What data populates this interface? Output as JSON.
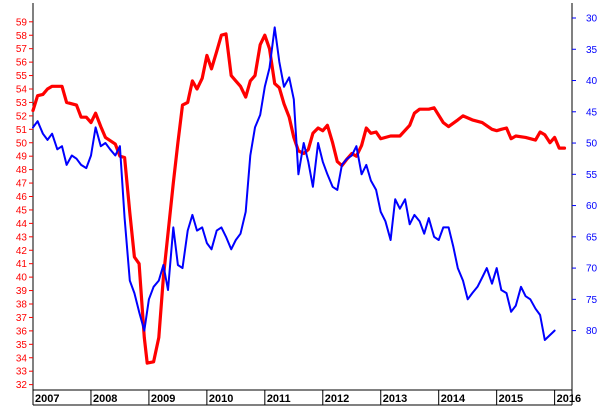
{
  "chart_data": {
    "type": "line",
    "title": "",
    "xlabel": "",
    "ylabel_left": "",
    "ylabel_right": "",
    "x_ticks": [
      "2007",
      "2008",
      "2009",
      "2010",
      "2011",
      "2012",
      "2013",
      "2014",
      "2015",
      "2016"
    ],
    "x_range": [
      2007.0,
      2016.3
    ],
    "y_left": {
      "range": [
        31.6,
        60.4
      ],
      "ticks": [
        32,
        33,
        34,
        35,
        36,
        37,
        38,
        39,
        40,
        41,
        42,
        43,
        44,
        45,
        46,
        47,
        48,
        49,
        50,
        51,
        52,
        53,
        54,
        55,
        56,
        57,
        58,
        59
      ],
      "color": "#ff0000"
    },
    "y_right": {
      "range": [
        27.6,
        89.5
      ],
      "ticks": [
        30,
        35,
        40,
        45,
        50,
        55,
        60,
        65,
        70,
        75,
        80
      ],
      "inverted": true,
      "color": "#0000ff"
    },
    "grid": false,
    "legend": "none",
    "series": [
      {
        "axis": "left",
        "color": "#ff0000",
        "points": [
          [
            2007.0,
            52.4
          ],
          [
            2007.08,
            53.5
          ],
          [
            2007.17,
            53.6
          ],
          [
            2007.25,
            54.0
          ],
          [
            2007.33,
            54.2
          ],
          [
            2007.5,
            54.2
          ],
          [
            2007.58,
            53.0
          ],
          [
            2007.75,
            52.8
          ],
          [
            2007.83,
            51.9
          ],
          [
            2007.92,
            51.9
          ],
          [
            2008.0,
            51.5
          ],
          [
            2008.08,
            52.2
          ],
          [
            2008.17,
            51.2
          ],
          [
            2008.25,
            50.4
          ],
          [
            2008.42,
            49.9
          ],
          [
            2008.5,
            49.0
          ],
          [
            2008.58,
            48.9
          ],
          [
            2008.67,
            44.8
          ],
          [
            2008.75,
            41.5
          ],
          [
            2008.83,
            41.0
          ],
          [
            2008.92,
            35.5
          ],
          [
            2008.97,
            33.6
          ],
          [
            2009.08,
            33.7
          ],
          [
            2009.17,
            35.5
          ],
          [
            2009.25,
            40.0
          ],
          [
            2009.42,
            47.0
          ],
          [
            2009.5,
            50.0
          ],
          [
            2009.58,
            52.8
          ],
          [
            2009.67,
            53.0
          ],
          [
            2009.75,
            54.6
          ],
          [
            2009.83,
            54.0
          ],
          [
            2009.92,
            54.8
          ],
          [
            2010.0,
            56.5
          ],
          [
            2010.08,
            55.5
          ],
          [
            2010.17,
            56.8
          ],
          [
            2010.25,
            58.0
          ],
          [
            2010.33,
            58.1
          ],
          [
            2010.42,
            55.0
          ],
          [
            2010.5,
            54.6
          ],
          [
            2010.58,
            54.2
          ],
          [
            2010.67,
            53.4
          ],
          [
            2010.75,
            54.6
          ],
          [
            2010.83,
            55.0
          ],
          [
            2010.92,
            57.3
          ],
          [
            2011.0,
            58.0
          ],
          [
            2011.08,
            57.0
          ],
          [
            2011.17,
            54.4
          ],
          [
            2011.25,
            54.1
          ],
          [
            2011.33,
            52.9
          ],
          [
            2011.42,
            51.9
          ],
          [
            2011.5,
            50.4
          ],
          [
            2011.58,
            49.4
          ],
          [
            2011.67,
            49.2
          ],
          [
            2011.75,
            49.5
          ],
          [
            2011.83,
            50.7
          ],
          [
            2011.92,
            51.1
          ],
          [
            2012.0,
            50.9
          ],
          [
            2012.08,
            51.3
          ],
          [
            2012.17,
            50.0
          ],
          [
            2012.25,
            48.6
          ],
          [
            2012.33,
            48.3
          ],
          [
            2012.42,
            48.8
          ],
          [
            2012.5,
            49.2
          ],
          [
            2012.58,
            49.0
          ],
          [
            2012.67,
            49.8
          ],
          [
            2012.75,
            51.1
          ],
          [
            2012.83,
            50.7
          ],
          [
            2012.92,
            50.8
          ],
          [
            2013.0,
            50.3
          ],
          [
            2013.17,
            50.5
          ],
          [
            2013.33,
            50.5
          ],
          [
            2013.5,
            51.3
          ],
          [
            2013.58,
            52.2
          ],
          [
            2013.67,
            52.5
          ],
          [
            2013.83,
            52.5
          ],
          [
            2013.92,
            52.6
          ],
          [
            2014.08,
            51.5
          ],
          [
            2014.17,
            51.2
          ],
          [
            2014.33,
            51.7
          ],
          [
            2014.42,
            52.0
          ],
          [
            2014.58,
            51.7
          ],
          [
            2014.75,
            51.5
          ],
          [
            2014.92,
            51.0
          ],
          [
            2015.0,
            50.9
          ],
          [
            2015.08,
            51.0
          ],
          [
            2015.17,
            51.1
          ],
          [
            2015.25,
            50.3
          ],
          [
            2015.33,
            50.5
          ],
          [
            2015.5,
            50.4
          ],
          [
            2015.67,
            50.2
          ],
          [
            2015.75,
            50.8
          ],
          [
            2015.83,
            50.6
          ],
          [
            2015.92,
            50.0
          ],
          [
            2016.0,
            50.4
          ],
          [
            2016.08,
            49.6
          ],
          [
            2016.17,
            49.6
          ]
        ]
      },
      {
        "axis": "right",
        "color": "#0000ff",
        "points": [
          [
            2007.0,
            47.5
          ],
          [
            2007.08,
            46.5
          ],
          [
            2007.17,
            48.5
          ],
          [
            2007.25,
            49.5
          ],
          [
            2007.33,
            48.5
          ],
          [
            2007.42,
            51.0
          ],
          [
            2007.5,
            50.5
          ],
          [
            2007.58,
            53.5
          ],
          [
            2007.67,
            52.0
          ],
          [
            2007.75,
            52.5
          ],
          [
            2007.83,
            53.5
          ],
          [
            2007.92,
            54.0
          ],
          [
            2008.0,
            52.0
          ],
          [
            2008.08,
            47.5
          ],
          [
            2008.17,
            50.5
          ],
          [
            2008.25,
            50.0
          ],
          [
            2008.33,
            51.0
          ],
          [
            2008.42,
            52.0
          ],
          [
            2008.5,
            50.5
          ],
          [
            2008.58,
            62.0
          ],
          [
            2008.67,
            72.0
          ],
          [
            2008.75,
            74.0
          ],
          [
            2008.83,
            77.0
          ],
          [
            2008.92,
            80.0
          ],
          [
            2009.0,
            75.0
          ],
          [
            2009.08,
            73.0
          ],
          [
            2009.17,
            72.0
          ],
          [
            2009.25,
            69.5
          ],
          [
            2009.33,
            73.5
          ],
          [
            2009.42,
            63.5
          ],
          [
            2009.5,
            69.5
          ],
          [
            2009.58,
            70.0
          ],
          [
            2009.67,
            64.0
          ],
          [
            2009.75,
            61.5
          ],
          [
            2009.83,
            64.0
          ],
          [
            2009.92,
            63.5
          ],
          [
            2010.0,
            66.0
          ],
          [
            2010.08,
            67.0
          ],
          [
            2010.17,
            64.0
          ],
          [
            2010.25,
            63.5
          ],
          [
            2010.33,
            65.0
          ],
          [
            2010.42,
            67.0
          ],
          [
            2010.5,
            65.5
          ],
          [
            2010.58,
            64.5
          ],
          [
            2010.67,
            61.0
          ],
          [
            2010.75,
            52.0
          ],
          [
            2010.83,
            47.5
          ],
          [
            2010.92,
            45.5
          ],
          [
            2011.0,
            41.0
          ],
          [
            2011.08,
            38.0
          ],
          [
            2011.17,
            31.5
          ],
          [
            2011.25,
            37.0
          ],
          [
            2011.33,
            41.0
          ],
          [
            2011.42,
            39.5
          ],
          [
            2011.5,
            43.0
          ],
          [
            2011.58,
            55.0
          ],
          [
            2011.67,
            50.0
          ],
          [
            2011.75,
            53.0
          ],
          [
            2011.83,
            57.0
          ],
          [
            2011.92,
            50.0
          ],
          [
            2012.0,
            53.0
          ],
          [
            2012.08,
            55.0
          ],
          [
            2012.17,
            57.0
          ],
          [
            2012.25,
            57.5
          ],
          [
            2012.33,
            53.5
          ],
          [
            2012.42,
            52.5
          ],
          [
            2012.5,
            52.0
          ],
          [
            2012.58,
            50.5
          ],
          [
            2012.67,
            55.0
          ],
          [
            2012.75,
            53.5
          ],
          [
            2012.83,
            56.0
          ],
          [
            2012.92,
            57.5
          ],
          [
            2013.0,
            61.0
          ],
          [
            2013.08,
            62.5
          ],
          [
            2013.17,
            65.5
          ],
          [
            2013.25,
            59.0
          ],
          [
            2013.33,
            60.5
          ],
          [
            2013.42,
            59.0
          ],
          [
            2013.5,
            63.0
          ],
          [
            2013.58,
            61.5
          ],
          [
            2013.67,
            62.5
          ],
          [
            2013.75,
            64.5
          ],
          [
            2013.83,
            62.0
          ],
          [
            2013.92,
            65.0
          ],
          [
            2014.0,
            65.5
          ],
          [
            2014.08,
            63.5
          ],
          [
            2014.17,
            63.5
          ],
          [
            2014.25,
            66.5
          ],
          [
            2014.33,
            70.0
          ],
          [
            2014.42,
            72.0
          ],
          [
            2014.5,
            75.0
          ],
          [
            2014.58,
            74.0
          ],
          [
            2014.67,
            73.0
          ],
          [
            2014.75,
            71.5
          ],
          [
            2014.83,
            70.0
          ],
          [
            2014.92,
            72.5
          ],
          [
            2015.0,
            70.0
          ],
          [
            2015.08,
            73.5
          ],
          [
            2015.17,
            74.0
          ],
          [
            2015.25,
            77.0
          ],
          [
            2015.33,
            76.0
          ],
          [
            2015.42,
            73.0
          ],
          [
            2015.5,
            74.5
          ],
          [
            2015.58,
            75.0
          ],
          [
            2015.67,
            76.5
          ],
          [
            2015.75,
            77.5
          ],
          [
            2015.83,
            81.5
          ],
          [
            2016.0,
            80.0
          ]
        ]
      }
    ]
  }
}
